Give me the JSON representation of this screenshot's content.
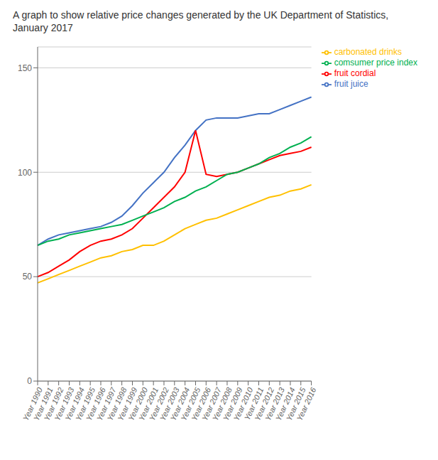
{
  "chart_data": {
    "type": "line",
    "title": "A graph to show relative price changes generated by the UK Department of Statistics, January 2017",
    "categories": [
      "Year 1990",
      "Year 1991",
      "Year 1992",
      "Year 1993",
      "Year 1994",
      "Year 1995",
      "Year 1996",
      "Year 1997",
      "Year 1998",
      "Year 1999",
      "Year 2000",
      "Year 2001",
      "Year 2002",
      "Year 2003",
      "Year 2004",
      "Year 2005",
      "Year 2006",
      "Year 2007",
      "Year 2008",
      "Year 2009",
      "Year 2010",
      "Year 2011",
      "Year 2012",
      "Year 2013",
      "Year 2014",
      "Year 2015",
      "Year 2016"
    ],
    "series": [
      {
        "name": "fruit juice",
        "color": "#4472C4",
        "values": [
          65,
          68,
          70,
          71,
          72,
          73,
          74,
          76,
          79,
          84,
          90,
          95,
          100,
          107,
          113,
          120,
          125,
          126,
          126,
          126,
          127,
          128,
          128,
          130,
          132,
          134,
          136
        ]
      },
      {
        "name": "fruit cordial",
        "color": "#FF0000",
        "values": [
          50,
          52,
          55,
          58,
          62,
          65,
          67,
          68,
          70,
          73,
          78,
          83,
          88,
          93,
          100,
          120,
          99,
          98,
          99,
          100,
          102,
          104,
          106,
          108,
          109,
          110,
          112
        ]
      },
      {
        "name": "carbonated drinks",
        "color": "#FFC000",
        "values": [
          47,
          49,
          51,
          53,
          55,
          57,
          59,
          60,
          62,
          63,
          65,
          65,
          67,
          70,
          73,
          75,
          77,
          78,
          80,
          82,
          84,
          86,
          88,
          89,
          91,
          92,
          94
        ]
      },
      {
        "name": "comsumer price index",
        "color": "#00B050",
        "values": [
          65,
          67,
          68,
          70,
          71,
          72,
          73,
          74,
          75,
          77,
          79,
          81,
          83,
          86,
          88,
          91,
          93,
          96,
          99,
          100,
          102,
          104,
          107,
          109,
          112,
          114,
          117
        ]
      }
    ],
    "ylim": [
      0,
      160
    ],
    "yticks": [
      0,
      50,
      100,
      150
    ],
    "grid": true,
    "legend": "right"
  }
}
